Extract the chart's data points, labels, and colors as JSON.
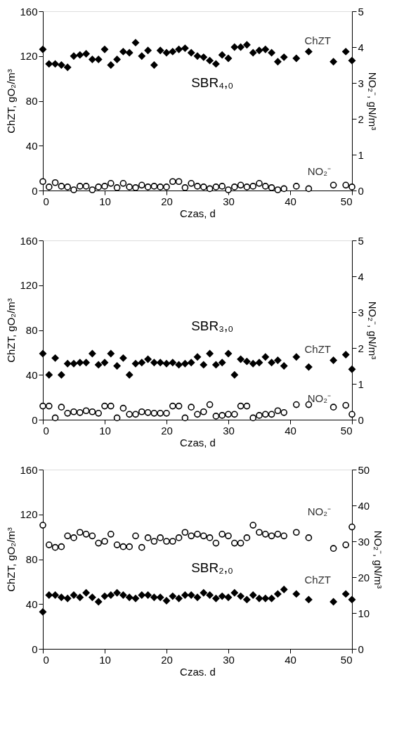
{
  "chart_data": [
    {
      "type": "scatter",
      "xlabel": "Czas, d",
      "ylabel": "ChZT, gO₂/m³",
      "y2label": "NO₂⁻, gN/m³",
      "xlim": [
        0,
        50
      ],
      "xticks": [
        0,
        10,
        20,
        30,
        40,
        50
      ],
      "ylim": [
        0,
        160
      ],
      "yticks": [
        0,
        40,
        80,
        120,
        160
      ],
      "y2lim": [
        0,
        5
      ],
      "y2ticks": [
        0,
        1,
        2,
        3,
        4,
        5
      ],
      "grid": false,
      "annotations": [
        "SBR₄,₀"
      ],
      "x": [
        0,
        1,
        2,
        3,
        4,
        5,
        6,
        7,
        8,
        9,
        10,
        11,
        12,
        13,
        14,
        15,
        16,
        17,
        18,
        19,
        20,
        21,
        22,
        23,
        24,
        25,
        26,
        27,
        28,
        29,
        30,
        31,
        32,
        33,
        34,
        35,
        36,
        37,
        38,
        39,
        41,
        43,
        47,
        49,
        50
      ],
      "series": [
        {
          "name": "ChZT",
          "color": "#000000",
          "marker": "diamond",
          "values": [
            126,
            113,
            113,
            112,
            110,
            120,
            121,
            122,
            117,
            117,
            126,
            112,
            117,
            124,
            123,
            132,
            120,
            125,
            112,
            125,
            123,
            124,
            126,
            127,
            123,
            120,
            119,
            116,
            113,
            121,
            118,
            128,
            128,
            130,
            123,
            125,
            126,
            123,
            115,
            119,
            118,
            124,
            115,
            124,
            116
          ]
        },
        {
          "name": "NO₂⁻",
          "color": "#000000",
          "marker": "circle",
          "axis": "y2",
          "values": [
            0.25,
            0.1,
            0.22,
            0.12,
            0.1,
            0.02,
            0.12,
            0.12,
            0.02,
            0.1,
            0.12,
            0.2,
            0.08,
            0.2,
            0.1,
            0.08,
            0.15,
            0.1,
            0.12,
            0.1,
            0.1,
            0.25,
            0.25,
            0.08,
            0.2,
            0.12,
            0.1,
            0.05,
            0.1,
            0.12,
            0.02,
            0.1,
            0.15,
            0.1,
            0.12,
            0.2,
            0.12,
            0.08,
            0.02,
            0.05,
            0.12,
            0.05,
            0.15,
            0.15,
            0.1
          ]
        }
      ]
    },
    {
      "type": "scatter",
      "xlabel": "Czas, d",
      "ylabel": "ChZT, gO₂/m³",
      "y2label": "NO₂⁻, gN/m³",
      "xlim": [
        0,
        50
      ],
      "xticks": [
        0,
        10,
        20,
        30,
        40,
        50
      ],
      "ylim": [
        0,
        160
      ],
      "yticks": [
        0,
        40,
        80,
        120,
        160
      ],
      "y2lim": [
        0,
        5
      ],
      "y2ticks": [
        0,
        1,
        2,
        3,
        4,
        5
      ],
      "grid": false,
      "annotations": [
        "SBR₃,₀"
      ],
      "x": [
        0,
        1,
        2,
        3,
        4,
        5,
        6,
        7,
        8,
        9,
        10,
        11,
        12,
        13,
        14,
        15,
        16,
        17,
        18,
        19,
        20,
        21,
        22,
        23,
        24,
        25,
        26,
        27,
        28,
        29,
        30,
        31,
        32,
        33,
        34,
        35,
        36,
        37,
        38,
        39,
        41,
        43,
        47,
        49,
        50
      ],
      "series": [
        {
          "name": "ChZT",
          "color": "#000000",
          "marker": "diamond",
          "values": [
            59,
            40,
            55,
            40,
            50,
            50,
            51,
            51,
            59,
            49,
            51,
            59,
            48,
            55,
            40,
            50,
            51,
            54,
            51,
            51,
            50,
            51,
            49,
            50,
            51,
            56,
            49,
            59,
            49,
            51,
            59,
            40,
            54,
            52,
            50,
            51,
            56,
            51,
            53,
            48,
            56,
            47,
            53,
            58,
            45
          ]
        },
        {
          "name": "NO₂⁻",
          "color": "#000000",
          "marker": "circle",
          "axis": "y2",
          "values": [
            0.38,
            0.38,
            0.05,
            0.35,
            0.18,
            0.22,
            0.2,
            0.25,
            0.22,
            0.18,
            0.38,
            0.38,
            0.05,
            0.32,
            0.15,
            0.15,
            0.22,
            0.2,
            0.18,
            0.18,
            0.18,
            0.38,
            0.38,
            0.05,
            0.35,
            0.15,
            0.22,
            0.42,
            0.1,
            0.12,
            0.15,
            0.15,
            0.38,
            0.38,
            0.05,
            0.12,
            0.15,
            0.15,
            0.25,
            0.2,
            0.42,
            0.42,
            0.35,
            0.4,
            0.15
          ]
        }
      ]
    },
    {
      "type": "scatter",
      "xlabel": "Czas. d",
      "ylabel": "ChZT, gO₂/m³",
      "y2label": "NO₂⁻, gN/m³",
      "xlim": [
        0,
        50
      ],
      "xticks": [
        0,
        10,
        20,
        30,
        40,
        50
      ],
      "ylim": [
        0,
        160
      ],
      "yticks": [
        0,
        40,
        80,
        120,
        160
      ],
      "y2lim": [
        0,
        50
      ],
      "y2ticks": [
        0,
        10,
        20,
        30,
        40,
        50
      ],
      "grid": false,
      "annotations": [
        "SBR₂,₀"
      ],
      "x": [
        0,
        1,
        2,
        3,
        4,
        5,
        6,
        7,
        8,
        9,
        10,
        11,
        12,
        13,
        14,
        15,
        16,
        17,
        18,
        19,
        20,
        21,
        22,
        23,
        24,
        25,
        26,
        27,
        28,
        29,
        30,
        31,
        32,
        33,
        34,
        35,
        36,
        37,
        38,
        39,
        41,
        43,
        47,
        49,
        50
      ],
      "series": [
        {
          "name": "ChZT",
          "color": "#000000",
          "marker": "diamond",
          "values": [
            33,
            48,
            48,
            46,
            45,
            48,
            46,
            50,
            46,
            42,
            47,
            48,
            50,
            48,
            46,
            45,
            48,
            48,
            46,
            46,
            43,
            47,
            45,
            48,
            48,
            46,
            50,
            48,
            45,
            47,
            46,
            50,
            47,
            44,
            48,
            45,
            45,
            45,
            49,
            53,
            49,
            44,
            42,
            49,
            44
          ]
        },
        {
          "name": "NO₂⁻",
          "color": "#000000",
          "marker": "circle",
          "axis": "y2",
          "values": [
            34.5,
            29,
            28.3,
            28.5,
            31.5,
            31,
            32.5,
            32,
            31.5,
            29.5,
            30,
            32,
            29,
            28.5,
            28.5,
            31.5,
            28.3,
            31,
            30,
            31,
            30,
            30,
            31,
            32.5,
            31.5,
            32,
            31.5,
            31,
            29.5,
            32,
            31.5,
            29.5,
            29.5,
            31,
            34.5,
            32.5,
            32,
            31.5,
            32,
            31.5,
            32.5,
            31,
            28,
            29,
            34
          ]
        }
      ]
    }
  ]
}
